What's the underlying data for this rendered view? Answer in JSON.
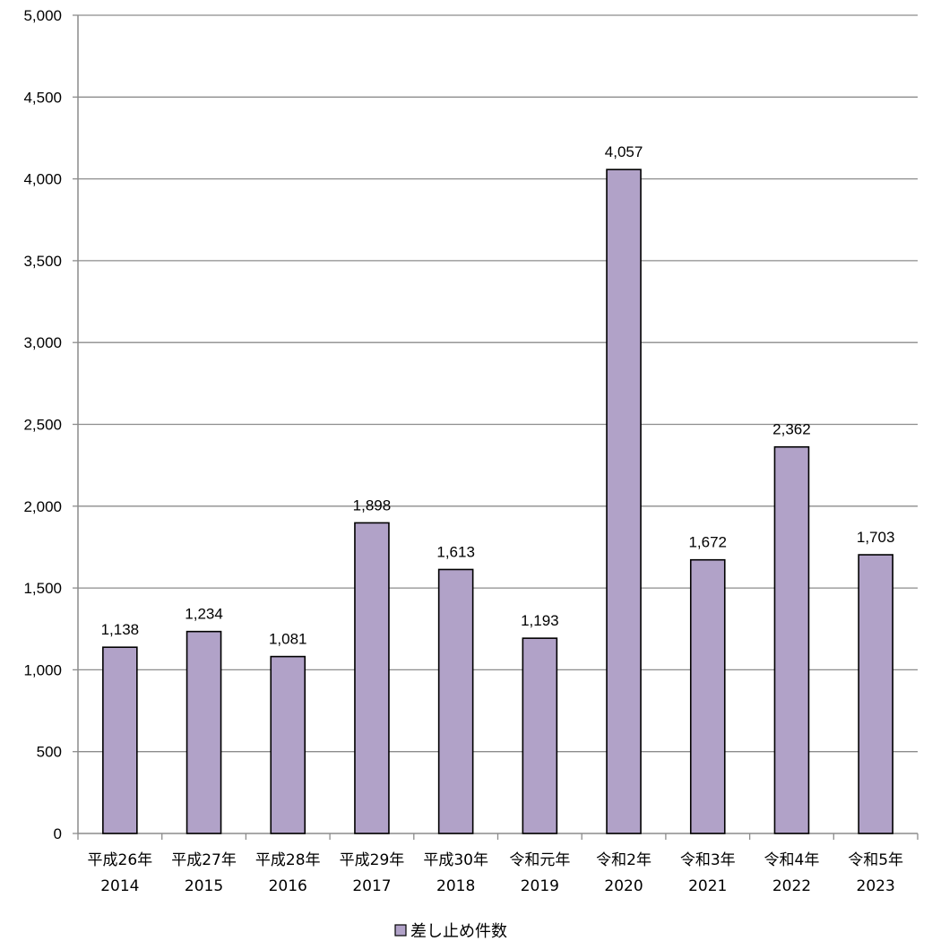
{
  "chart_data": {
    "type": "bar",
    "categories": [
      [
        "平成26年",
        "2014"
      ],
      [
        "平成27年",
        "2015"
      ],
      [
        "平成28年",
        "2016"
      ],
      [
        "平成29年",
        "2017"
      ],
      [
        "平成30年",
        "2018"
      ],
      [
        "令和元年",
        "2019"
      ],
      [
        "令和2年",
        "2020"
      ],
      [
        "令和3年",
        "2021"
      ],
      [
        "令和4年",
        "2022"
      ],
      [
        "令和5年",
        "2023"
      ]
    ],
    "series": [
      {
        "name": "差し止め件数",
        "values": [
          1138,
          1234,
          1081,
          1898,
          1613,
          1193,
          4057,
          1672,
          2362,
          1703
        ],
        "data_labels": [
          "1,138",
          "1,234",
          "1,081",
          "1,898",
          "1,613",
          "1,193",
          "4,057",
          "1,672",
          "2,362",
          "1,703"
        ],
        "color": "#b1a2c8"
      }
    ],
    "y_ticks": [
      {
        "value": 0,
        "label": "0"
      },
      {
        "value": 500,
        "label": "500"
      },
      {
        "value": 1000,
        "label": "1,000"
      },
      {
        "value": 1500,
        "label": "1,500"
      },
      {
        "value": 2000,
        "label": "2,000"
      },
      {
        "value": 2500,
        "label": "2,500"
      },
      {
        "value": 3000,
        "label": "3,000"
      },
      {
        "value": 3500,
        "label": "3,500"
      },
      {
        "value": 4000,
        "label": "4,000"
      },
      {
        "value": 4500,
        "label": "4,500"
      },
      {
        "value": 5000,
        "label": "5,000"
      }
    ],
    "ylim": [
      0,
      5000
    ],
    "grid": true,
    "legend_position": "bottom",
    "gridline_color": "#8c8c8c",
    "bar_border_color": "#000000"
  }
}
